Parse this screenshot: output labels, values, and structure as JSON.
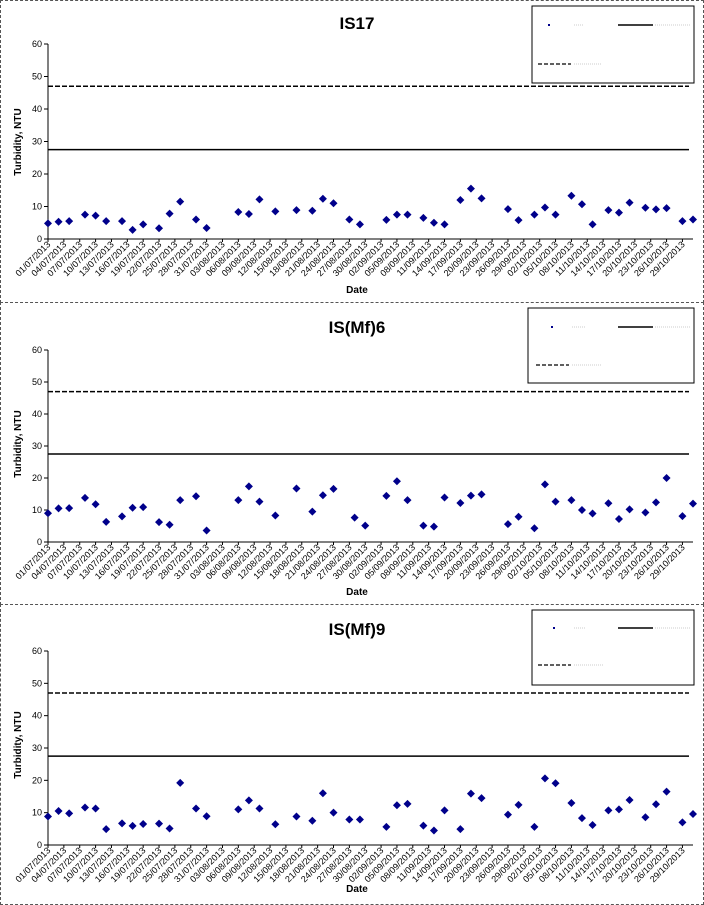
{
  "chart_data": [
    {
      "type": "scatter",
      "title": "IS17",
      "xlabel": "Date",
      "ylabel": "Turbidity, NTU",
      "ylim": [
        0,
        60
      ],
      "yticks": [
        0,
        10,
        20,
        30,
        40,
        50,
        60
      ],
      "x_tick_labels": [
        "01/07/2013",
        "04/07/2013",
        "07/07/2013",
        "10/07/2013",
        "13/07/2013",
        "16/07/2013",
        "19/07/2013",
        "22/07/2013",
        "25/07/2013",
        "28/07/2013",
        "31/07/2013",
        "03/08/2013",
        "06/08/2013",
        "09/08/2013",
        "12/08/2013",
        "15/08/2013",
        "18/08/2013",
        "21/08/2013",
        "24/08/2013",
        "27/08/2013",
        "30/08/2013",
        "02/09/2013",
        "05/09/2013",
        "08/09/2013",
        "11/09/2013",
        "14/09/2013",
        "17/09/2013",
        "20/09/2013",
        "23/09/2013",
        "26/09/2013",
        "29/09/2013",
        "02/10/2013",
        "05/10/2013",
        "08/10/2013",
        "11/10/2013",
        "14/10/2013",
        "17/10/2013",
        "20/10/2013",
        "23/10/2013",
        "26/10/2013",
        "29/10/2013"
      ],
      "reference_lines": [
        {
          "style": "dashed",
          "y": 47
        },
        {
          "style": "solid",
          "y": 27.5
        }
      ],
      "grid": false,
      "legend_position": "top-right",
      "series": [
        {
          "color": "#00008B",
          "points": [
            [
              "01/07/2013",
              4.8
            ],
            [
              "03/07/2013",
              5.3
            ],
            [
              "05/07/2013",
              5.5
            ],
            [
              "08/07/2013",
              7.5
            ],
            [
              "10/07/2013",
              7.2
            ],
            [
              "12/07/2013",
              5.5
            ],
            [
              "15/07/2013",
              5.5
            ],
            [
              "17/07/2013",
              2.8
            ],
            [
              "19/07/2013",
              4.5
            ],
            [
              "22/07/2013",
              3.3
            ],
            [
              "24/07/2013",
              7.8
            ],
            [
              "26/07/2013",
              11.5
            ],
            [
              "29/07/2013",
              6.0
            ],
            [
              "31/07/2013",
              3.4
            ],
            [
              "06/08/2013",
              8.3
            ],
            [
              "08/08/2013",
              7.7
            ],
            [
              "10/08/2013",
              12.2
            ],
            [
              "13/08/2013",
              8.5
            ],
            [
              "17/08/2013",
              8.9
            ],
            [
              "20/08/2013",
              8.7
            ],
            [
              "22/08/2013",
              12.4
            ],
            [
              "24/08/2013",
              11.0
            ],
            [
              "27/08/2013",
              6.0
            ],
            [
              "29/08/2013",
              4.5
            ],
            [
              "03/09/2013",
              5.9
            ],
            [
              "05/09/2013",
              7.5
            ],
            [
              "07/09/2013",
              7.5
            ],
            [
              "10/09/2013",
              6.5
            ],
            [
              "12/09/2013",
              5.0
            ],
            [
              "14/09/2013",
              4.5
            ],
            [
              "17/09/2013",
              12.0
            ],
            [
              "19/09/2013",
              15.5
            ],
            [
              "21/09/2013",
              12.5
            ],
            [
              "26/09/2013",
              9.2
            ],
            [
              "28/09/2013",
              5.8
            ],
            [
              "01/10/2013",
              7.5
            ],
            [
              "03/10/2013",
              9.7
            ],
            [
              "05/10/2013",
              7.5
            ],
            [
              "08/10/2013",
              13.3
            ],
            [
              "10/10/2013",
              10.7
            ],
            [
              "12/10/2013",
              4.5
            ],
            [
              "15/10/2013",
              8.9
            ],
            [
              "17/10/2013",
              8.1
            ],
            [
              "19/10/2013",
              11.2
            ],
            [
              "22/10/2013",
              9.6
            ],
            [
              "24/10/2013",
              9.1
            ],
            [
              "26/10/2013",
              9.5
            ],
            [
              "29/10/2013",
              5.5
            ],
            [
              "31/10/2013",
              6.0
            ]
          ]
        }
      ]
    },
    {
      "type": "scatter",
      "title": "IS(Mf)6",
      "xlabel": "Date",
      "ylabel": "Turbidity, NTU",
      "ylim": [
        0,
        60
      ],
      "yticks": [
        0,
        10,
        20,
        30,
        40,
        50,
        60
      ],
      "x_tick_labels": [
        "01/07/2013",
        "04/07/2013",
        "07/07/2013",
        "10/07/2013",
        "13/07/2013",
        "16/07/2013",
        "19/07/2013",
        "22/07/2013",
        "25/07/2013",
        "28/07/2013",
        "31/07/2013",
        "03/08/2013",
        "06/08/2013",
        "09/08/2013",
        "12/08/2013",
        "15/08/2013",
        "18/08/2013",
        "21/08/2013",
        "24/08/2013",
        "27/08/2013",
        "30/08/2013",
        "02/09/2013",
        "05/09/2013",
        "08/09/2013",
        "11/09/2013",
        "14/09/2013",
        "17/09/2013",
        "20/09/2013",
        "23/09/2013",
        "26/09/2013",
        "29/09/2013",
        "02/10/2013",
        "05/10/2013",
        "08/10/2013",
        "11/10/2013",
        "14/10/2013",
        "17/10/2013",
        "20/10/2013",
        "23/10/2013",
        "26/10/2013",
        "29/10/2013"
      ],
      "reference_lines": [
        {
          "style": "dashed",
          "y": 47
        },
        {
          "style": "solid",
          "y": 27.5
        }
      ],
      "grid": false,
      "legend_position": "top-right",
      "series": [
        {
          "color": "#00008B",
          "points": [
            [
              "01/07/2013",
              9.0
            ],
            [
              "03/07/2013",
              10.5
            ],
            [
              "05/07/2013",
              10.6
            ],
            [
              "08/07/2013",
              13.8
            ],
            [
              "10/07/2013",
              11.8
            ],
            [
              "12/07/2013",
              6.3
            ],
            [
              "15/07/2013",
              8.0
            ],
            [
              "17/07/2013",
              10.7
            ],
            [
              "19/07/2013",
              10.9
            ],
            [
              "22/07/2013",
              6.2
            ],
            [
              "24/07/2013",
              5.4
            ],
            [
              "26/07/2013",
              13.1
            ],
            [
              "29/07/2013",
              14.3
            ],
            [
              "31/07/2013",
              3.6
            ],
            [
              "06/08/2013",
              13.1
            ],
            [
              "08/08/2013",
              17.4
            ],
            [
              "10/08/2013",
              12.6
            ],
            [
              "13/08/2013",
              8.3
            ],
            [
              "17/08/2013",
              16.7
            ],
            [
              "20/08/2013",
              9.5
            ],
            [
              "22/08/2013",
              14.6
            ],
            [
              "24/08/2013",
              16.6
            ],
            [
              "28/08/2013",
              7.6
            ],
            [
              "30/08/2013",
              5.1
            ],
            [
              "03/09/2013",
              14.4
            ],
            [
              "05/09/2013",
              19.0
            ],
            [
              "07/09/2013",
              13.1
            ],
            [
              "10/09/2013",
              5.1
            ],
            [
              "12/09/2013",
              4.8
            ],
            [
              "14/09/2013",
              13.9
            ],
            [
              "17/09/2013",
              12.2
            ],
            [
              "19/09/2013",
              14.5
            ],
            [
              "21/09/2013",
              14.9
            ],
            [
              "26/09/2013",
              5.6
            ],
            [
              "28/09/2013",
              7.9
            ],
            [
              "01/10/2013",
              4.3
            ],
            [
              "03/10/2013",
              18.0
            ],
            [
              "05/10/2013",
              12.6
            ],
            [
              "08/10/2013",
              13.1
            ],
            [
              "10/10/2013",
              10.0
            ],
            [
              "12/10/2013",
              8.9
            ],
            [
              "15/10/2013",
              12.1
            ],
            [
              "17/10/2013",
              7.2
            ],
            [
              "19/10/2013",
              10.2
            ],
            [
              "22/10/2013",
              9.2
            ],
            [
              "24/10/2013",
              12.4
            ],
            [
              "26/10/2013",
              20.0
            ],
            [
              "29/10/2013",
              8.1
            ],
            [
              "31/10/2013",
              12.0
            ]
          ]
        }
      ]
    },
    {
      "type": "scatter",
      "title": "IS(Mf)9",
      "xlabel": "Date",
      "ylabel": "Turbidity, NTU",
      "ylim": [
        0,
        60
      ],
      "yticks": [
        0,
        10,
        20,
        30,
        40,
        50,
        60
      ],
      "x_tick_labels": [
        "01/07/2013",
        "04/07/2013",
        "07/07/2013",
        "10/07/2013",
        "13/07/2013",
        "16/07/2013",
        "19/07/2013",
        "22/07/2013",
        "25/07/2013",
        "28/07/2013",
        "31/07/2013",
        "03/08/2013",
        "06/08/2013",
        "09/08/2013",
        "12/08/2013",
        "15/08/2013",
        "18/08/2013",
        "21/08/2013",
        "24/08/2013",
        "27/08/2013",
        "30/08/2013",
        "02/09/2013",
        "05/09/2013",
        "08/09/2013",
        "11/09/2013",
        "14/09/2013",
        "17/09/2013",
        "20/09/2013",
        "23/09/2013",
        "26/09/2013",
        "29/09/2013",
        "02/10/2013",
        "05/10/2013",
        "08/10/2013",
        "11/10/2013",
        "14/10/2013",
        "17/10/2013",
        "20/10/2013",
        "23/10/2013",
        "26/10/2013",
        "29/10/2013"
      ],
      "reference_lines": [
        {
          "style": "dashed",
          "y": 47
        },
        {
          "style": "solid",
          "y": 27.5
        }
      ],
      "grid": false,
      "legend_position": "top-right",
      "series": [
        {
          "color": "#00008B",
          "points": [
            [
              "01/07/2013",
              8.8
            ],
            [
              "03/07/2013",
              10.5
            ],
            [
              "05/07/2013",
              9.8
            ],
            [
              "08/07/2013",
              11.6
            ],
            [
              "10/07/2013",
              11.3
            ],
            [
              "12/07/2013",
              4.9
            ],
            [
              "15/07/2013",
              6.7
            ],
            [
              "17/07/2013",
              5.9
            ],
            [
              "19/07/2013",
              6.5
            ],
            [
              "22/07/2013",
              6.6
            ],
            [
              "24/07/2013",
              5.1
            ],
            [
              "26/07/2013",
              19.2
            ],
            [
              "29/07/2013",
              11.3
            ],
            [
              "31/07/2013",
              8.9
            ],
            [
              "06/08/2013",
              11.0
            ],
            [
              "08/08/2013",
              13.8
            ],
            [
              "10/08/2013",
              11.3
            ],
            [
              "13/08/2013",
              6.4
            ],
            [
              "17/08/2013",
              8.8
            ],
            [
              "20/08/2013",
              7.5
            ],
            [
              "22/08/2013",
              16.0
            ],
            [
              "24/08/2013",
              10.0
            ],
            [
              "27/08/2013",
              7.9
            ],
            [
              "29/08/2013",
              7.9
            ],
            [
              "03/09/2013",
              5.6
            ],
            [
              "05/09/2013",
              12.3
            ],
            [
              "07/09/2013",
              12.7
            ],
            [
              "10/09/2013",
              6.0
            ],
            [
              "12/09/2013",
              4.5
            ],
            [
              "14/09/2013",
              10.7
            ],
            [
              "17/09/2013",
              4.9
            ],
            [
              "19/09/2013",
              15.9
            ],
            [
              "21/09/2013",
              14.5
            ],
            [
              "26/09/2013",
              9.4
            ],
            [
              "28/09/2013",
              12.4
            ],
            [
              "01/10/2013",
              5.6
            ],
            [
              "03/10/2013",
              20.6
            ],
            [
              "05/10/2013",
              19.1
            ],
            [
              "08/10/2013",
              13.0
            ],
            [
              "10/10/2013",
              8.3
            ],
            [
              "12/10/2013",
              6.2
            ],
            [
              "15/10/2013",
              10.7
            ],
            [
              "17/10/2013",
              11.0
            ],
            [
              "19/10/2013",
              13.9
            ],
            [
              "22/10/2013",
              8.6
            ],
            [
              "24/10/2013",
              12.6
            ],
            [
              "26/10/2013",
              16.5
            ],
            [
              "29/10/2013",
              7.0
            ],
            [
              "31/10/2013",
              9.6
            ]
          ]
        }
      ]
    }
  ]
}
